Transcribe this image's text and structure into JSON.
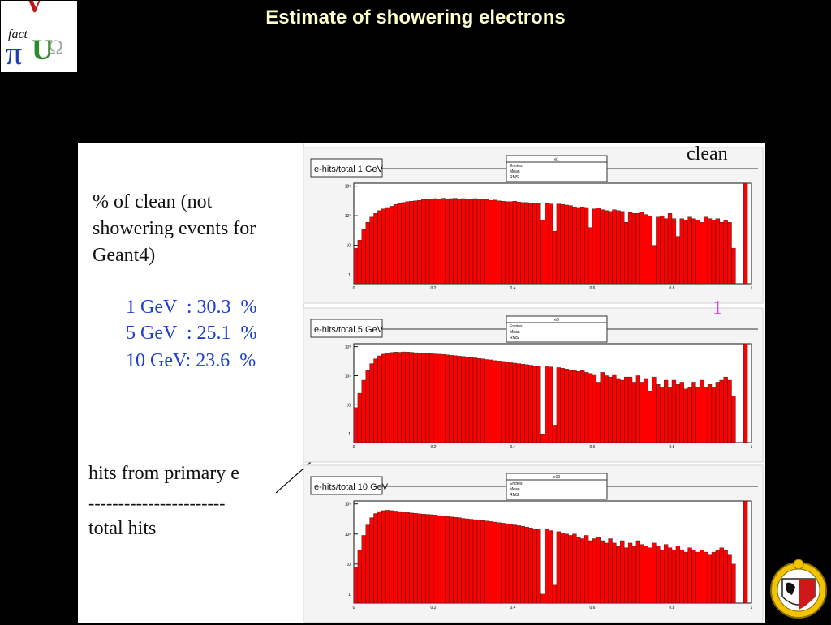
{
  "slide": {
    "title": "Estimate of showering electrons"
  },
  "logo": {
    "text": "fact",
    "glyphs": [
      "V",
      "π",
      "U",
      "Ω"
    ]
  },
  "notes": {
    "clean_intro": [
      "% of clean (not",
      "showering events for",
      "Geant4)"
    ],
    "percentages": [
      {
        "label": "1 GeV  : 30.3  %"
      },
      {
        "label": "5 GeV  : 25.1  %"
      },
      {
        "label": "10 GeV: 23.6  %"
      }
    ],
    "ratio": {
      "numerator": "hits from primary e",
      "separator": "-----------------------",
      "denominator": "total hits"
    },
    "clean_label": "clean",
    "clean_bin": "1"
  },
  "colors": {
    "bar": "#ff0000",
    "text_blue": "#1f3ed0",
    "clean_bin_label": "#e040e0",
    "title": "#ffffcc",
    "background": "#000000"
  },
  "chart_data": [
    {
      "type": "bar",
      "title": "e-hits/total 1 GeV",
      "stats_box": {
        "name": "e1",
        "rows": [
          "Entries",
          "Mean",
          "RMS"
        ]
      },
      "log_y": true,
      "ylim_exp": [
        -0.3,
        3.1
      ],
      "y_ticks": [
        "1",
        "10",
        "10²",
        "10³"
      ],
      "x_ticks": [
        "0",
        "0.2",
        "0.4",
        "0.6",
        "0.8",
        "1"
      ],
      "xlim": [
        0,
        1.0
      ],
      "bin_width": 0.01,
      "x_start": 0.005,
      "values": [
        8,
        15,
        35,
        60,
        90,
        120,
        150,
        170,
        190,
        210,
        240,
        260,
        280,
        300,
        310,
        320,
        330,
        350,
        350,
        370,
        380,
        370,
        390,
        370,
        380,
        390,
        370,
        380,
        370,
        360,
        380,
        370,
        360,
        350,
        330,
        340,
        320,
        310,
        300,
        300,
        310,
        290,
        280,
        280,
        270,
        270,
        260,
        70,
        260,
        250,
        30,
        250,
        240,
        230,
        220,
        200,
        190,
        200,
        190,
        40,
        170,
        180,
        160,
        150,
        140,
        160,
        150,
        140,
        60,
        130,
        120,
        120,
        130,
        110,
        100,
        10,
        90,
        100,
        80,
        120,
        80,
        20,
        80,
        70,
        90,
        80,
        70,
        60,
        90,
        80,
        70,
        80,
        60,
        70,
        60,
        8
      ],
      "clean_x": 0.985,
      "clean_value": 5000
    },
    {
      "type": "bar",
      "title": "e-hits/total 5 GeV",
      "stats_box": {
        "name": "e5",
        "rows": [
          "Entries",
          "Mean",
          "RMS"
        ]
      },
      "log_y": true,
      "ylim_exp": [
        -0.3,
        3.1
      ],
      "y_ticks": [
        "1",
        "10",
        "10²",
        "10³"
      ],
      "x_ticks": [
        "0",
        "0.2",
        "0.4",
        "0.6",
        "0.8",
        "1"
      ],
      "xlim": [
        0,
        1.0
      ],
      "bin_width": 0.01,
      "x_start": 0.005,
      "values": [
        8,
        25,
        70,
        150,
        260,
        380,
        480,
        550,
        600,
        630,
        650,
        640,
        660,
        650,
        640,
        620,
        610,
        600,
        590,
        580,
        560,
        550,
        540,
        520,
        500,
        490,
        470,
        460,
        440,
        420,
        410,
        390,
        380,
        360,
        350,
        330,
        320,
        310,
        290,
        280,
        270,
        260,
        250,
        240,
        230,
        220,
        210,
        1,
        210,
        200,
        2,
        190,
        180,
        170,
        160,
        150,
        140,
        150,
        130,
        120,
        110,
        60,
        130,
        100,
        90,
        110,
        80,
        70,
        90,
        90,
        60,
        100,
        60,
        80,
        30,
        90,
        50,
        40,
        70,
        40,
        70,
        50,
        60,
        35,
        40,
        60,
        40,
        70,
        40,
        50,
        40,
        60,
        70,
        90,
        70,
        20
      ],
      "clean_x": 0.985,
      "clean_value": 4500
    },
    {
      "type": "bar",
      "title": "e-hits/total 10 GeV",
      "stats_box": {
        "name": "e10",
        "rows": [
          "Entries",
          "Mean",
          "RMS"
        ]
      },
      "log_y": true,
      "ylim_exp": [
        -0.3,
        3.1
      ],
      "y_ticks": [
        "1",
        "10",
        "10²",
        "10³"
      ],
      "x_ticks": [
        "0",
        "0.2",
        "0.4",
        "0.6",
        "0.8",
        "1"
      ],
      "xlim": [
        0,
        1.0
      ],
      "bin_width": 0.01,
      "x_start": 0.005,
      "values": [
        8,
        30,
        90,
        200,
        350,
        480,
        560,
        600,
        620,
        600,
        580,
        560,
        540,
        520,
        500,
        490,
        470,
        460,
        450,
        440,
        430,
        410,
        400,
        380,
        370,
        360,
        350,
        330,
        320,
        310,
        300,
        290,
        280,
        270,
        260,
        250,
        240,
        230,
        220,
        210,
        200,
        190,
        180,
        170,
        160,
        150,
        140,
        1,
        150,
        130,
        2,
        120,
        110,
        100,
        90,
        100,
        80,
        70,
        90,
        60,
        70,
        80,
        60,
        50,
        70,
        50,
        40,
        60,
        35,
        50,
        40,
        60,
        45,
        40,
        35,
        50,
        40,
        30,
        45,
        35,
        30,
        40,
        30,
        25,
        35,
        30,
        25,
        30,
        25,
        20,
        25,
        30,
        35,
        28,
        20,
        10
      ],
      "clean_x": 0.985,
      "clean_value": 4000
    }
  ]
}
